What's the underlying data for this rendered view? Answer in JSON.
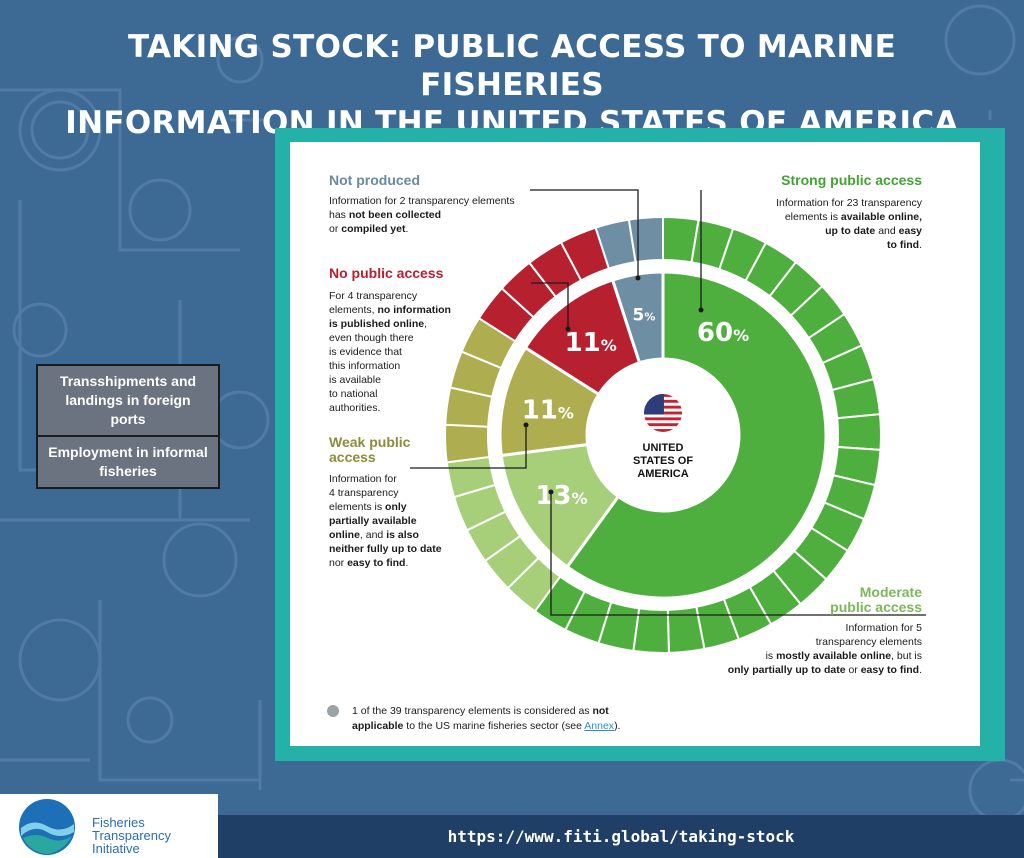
{
  "title": {
    "line1": "TAKING STOCK: PUBLIC ACCESS TO MARINE FISHERIES",
    "line2": "INFORMATION IN THE UNITED STATES OF AMERICA"
  },
  "side_boxes": [
    "Transshipments and landings in foreign ports",
    "Employment in informal fisheries"
  ],
  "center_label": [
    "UNITED",
    "STATES OF",
    "AMERICA"
  ],
  "annotations": {
    "not_produced": {
      "heading": "Not produced",
      "l1": "Information for 2 transparency elements",
      "l2a": "has ",
      "l2b": "not been collected",
      "l3a": "or ",
      "l3b": "compiled yet",
      "l3c": "."
    },
    "no_access": {
      "heading": "No public access",
      "l1": "For 4 transparency",
      "l2a": "elements, ",
      "l2b": "no information",
      "l3": "is published online",
      "l3c": ",",
      "l4": "even though there",
      "l5": "is evidence that",
      "l6": "this information",
      "l7": "is available",
      "l8": "to national",
      "l9": "authorities."
    },
    "weak": {
      "heading1": "Weak public",
      "heading2": "access",
      "l1": "Information for",
      "l2": "4 transparency",
      "l3a": "elements is ",
      "l3b": "only",
      "l4": "partially available",
      "l5a": "online",
      "l5b": ", and ",
      "l5c": "is also",
      "l6": "neither fully up to date",
      "l7a": "nor ",
      "l7b": "easy to find",
      "l7c": "."
    },
    "strong": {
      "heading": "Strong public access",
      "l1": "Information for 23 transparency",
      "l2a": "elements is ",
      "l2b": "available online,",
      "l3a": "up to date",
      "l3b": " and ",
      "l3c": "easy",
      "l4": "to find",
      "l4c": "."
    },
    "moderate": {
      "heading1": "Moderate",
      "heading2": "public access",
      "l1": "Information for 5",
      "l2": "transparency elements",
      "l3a": "is ",
      "l3b": "mostly available online",
      "l3c": ", but is",
      "l4a": "only partially up to date",
      "l4b": " or ",
      "l4c": "easy to find",
      "l4d": "."
    }
  },
  "note": {
    "a": "1 of the 39 transparency elements is considered as ",
    "b": "not",
    "c": "applicable",
    "d": " to the US marine fisheries sector (see ",
    "e": "Annex",
    "f": ")."
  },
  "footer_url": "https://www.fiti.global/taking-stock",
  "logo": [
    "Fisheries",
    "Transparency",
    "Initiative"
  ],
  "chart_data": {
    "type": "pie",
    "categories": [
      "Strong public access",
      "Moderate public access",
      "Weak public access",
      "No public access",
      "Not produced"
    ],
    "percent_labels": [
      "60",
      "13",
      "11",
      "11",
      "5"
    ],
    "percent_sign": "%",
    "values": [
      60,
      13,
      11,
      11,
      5
    ],
    "element_counts": [
      23,
      5,
      4,
      4,
      2
    ],
    "colors": [
      "#4faf3e",
      "#a7cf7a",
      "#aeae50",
      "#b7202e",
      "#6e8ea3"
    ],
    "heading_colors": [
      "#3fa52f",
      "#7cb85a",
      "#8c8c3a",
      "#b7202e",
      "#6a8aa0"
    ]
  }
}
